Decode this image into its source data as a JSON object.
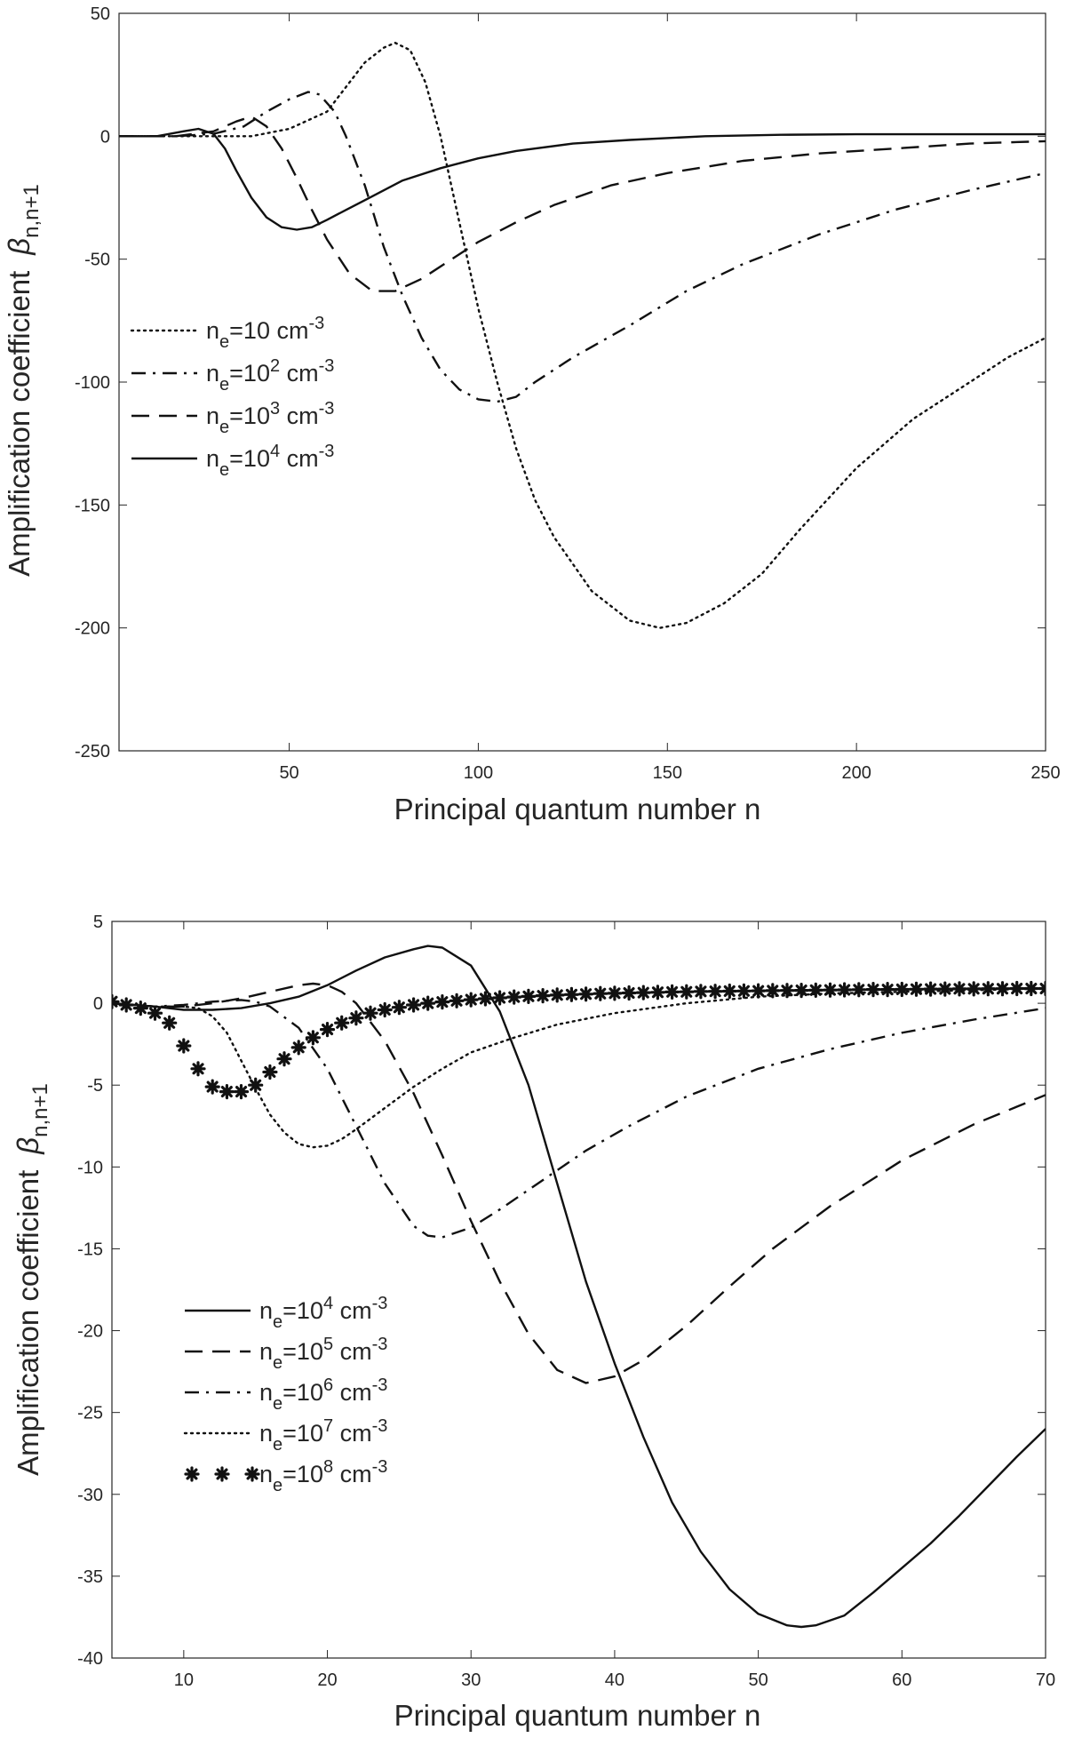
{
  "charts": [
    {
      "xlabel": "Principal quantum number n",
      "ylabel_main": "Amplification coefficient",
      "ylabel_symbol": "β",
      "ylabel_sub": "n,n+1",
      "legend_base": "n",
      "legend_sub": "e",
      "legend_unit": " cm",
      "legend_unit_sup": "-3",
      "xticks": [
        "50",
        "100",
        "150",
        "200",
        "250"
      ],
      "yticks": [
        "50",
        "0",
        "-50",
        "-100",
        "-150",
        "-200",
        "-250"
      ],
      "legend": [
        {
          "style": "dotted",
          "value": "=10",
          "sup": ""
        },
        {
          "style": "dashdot",
          "value": "=10",
          "sup": "2"
        },
        {
          "style": "dashed",
          "value": "=10",
          "sup": "3"
        },
        {
          "style": "solid",
          "value": "=10",
          "sup": "4"
        }
      ]
    },
    {
      "xlabel": "Principal quantum number n",
      "ylabel_main": "Amplification coefficient",
      "ylabel_symbol": "β",
      "ylabel_sub": "n,n+1",
      "legend_base": "n",
      "legend_sub": "e",
      "legend_unit": " cm",
      "legend_unit_sup": "-3",
      "xticks": [
        "10",
        "20",
        "30",
        "40",
        "50",
        "60",
        "70"
      ],
      "yticks": [
        "5",
        "0",
        "-5",
        "-10",
        "-15",
        "-20",
        "-25",
        "-30",
        "-35",
        "-40"
      ],
      "legend": [
        {
          "style": "solid",
          "value": "=10",
          "sup": "4"
        },
        {
          "style": "dashed",
          "value": "=10",
          "sup": "5"
        },
        {
          "style": "dashdot",
          "value": "=10",
          "sup": "6"
        },
        {
          "style": "dotted",
          "value": "=10",
          "sup": "7"
        },
        {
          "style": "stars",
          "value": "=10",
          "sup": "8"
        }
      ]
    }
  ],
  "chart_data": [
    {
      "type": "line",
      "title": "",
      "xlabel": "Principal quantum number n",
      "ylabel": "Amplification coefficient β_{n,n+1}",
      "xlim": [
        5,
        250
      ],
      "ylim": [
        -250,
        50
      ],
      "xticks": [
        50,
        100,
        150,
        200,
        250
      ],
      "yticks": [
        50,
        0,
        -50,
        -100,
        -150,
        -200,
        -250
      ],
      "grid": false,
      "legend_position": "middle-left",
      "series": [
        {
          "name": "n_e=10 cm^-3",
          "style": "dotted",
          "x": [
            5,
            20,
            40,
            50,
            60,
            65,
            70,
            75,
            78,
            82,
            86,
            90,
            95,
            100,
            105,
            110,
            115,
            120,
            130,
            140,
            148,
            155,
            165,
            175,
            185,
            200,
            215,
            230,
            240,
            250
          ],
          "y": [
            0,
            0,
            0,
            3,
            10,
            20,
            30,
            36,
            38,
            35,
            22,
            0,
            -35,
            -70,
            -100,
            -127,
            -148,
            -163,
            -185,
            -197,
            -200,
            -198,
            -190,
            -178,
            -160,
            -135,
            -115,
            -100,
            -90,
            -82
          ]
        },
        {
          "name": "n_e=10^2 cm^-3",
          "style": "dashdot",
          "x": [
            5,
            20,
            30,
            38,
            44,
            50,
            55,
            58,
            62,
            65,
            70,
            75,
            80,
            85,
            90,
            95,
            100,
            105,
            110,
            115,
            125,
            140,
            155,
            170,
            190,
            210,
            230,
            250
          ],
          "y": [
            0,
            0,
            1,
            4,
            10,
            15,
            18,
            17,
            10,
            0,
            -20,
            -45,
            -65,
            -82,
            -95,
            -103,
            -107,
            -108,
            -106,
            -100,
            -90,
            -77,
            -63,
            -52,
            -40,
            -30,
            -22,
            -15
          ]
        },
        {
          "name": "n_e=10^3 cm^-3",
          "style": "dashed",
          "x": [
            5,
            20,
            30,
            36,
            40,
            44,
            48,
            52,
            56,
            60,
            66,
            72,
            78,
            85,
            92,
            100,
            110,
            120,
            135,
            150,
            170,
            190,
            210,
            230,
            250
          ],
          "y": [
            0,
            0,
            2,
            6,
            8,
            4,
            -5,
            -17,
            -30,
            -42,
            -56,
            -63,
            -63,
            -58,
            -51,
            -43,
            -35,
            -28,
            -20,
            -15,
            -10,
            -7,
            -5,
            -3,
            -2
          ]
        },
        {
          "name": "n_e=10^4 cm^-3",
          "style": "solid",
          "x": [
            5,
            15,
            22,
            26,
            30,
            33,
            36,
            40,
            44,
            48,
            52,
            56,
            60,
            65,
            70,
            75,
            80,
            90,
            100,
            110,
            125,
            140,
            160,
            180,
            200,
            225,
            250
          ],
          "y": [
            0,
            0,
            2,
            3,
            1,
            -5,
            -14,
            -25,
            -33,
            -37,
            -38,
            -37,
            -34,
            -30,
            -26,
            -22,
            -18,
            -13,
            -9,
            -6,
            -3,
            -1.5,
            0,
            0.6,
            0.8,
            0.8,
            0.8
          ]
        }
      ]
    },
    {
      "type": "line",
      "title": "",
      "xlabel": "Principal quantum number n",
      "ylabel": "Amplification coefficient β_{n,n+1}",
      "xlim": [
        5,
        70
      ],
      "ylim": [
        -40,
        5
      ],
      "xticks": [
        10,
        20,
        30,
        40,
        50,
        60,
        70
      ],
      "yticks": [
        5,
        0,
        -5,
        -10,
        -15,
        -20,
        -25,
        -30,
        -35,
        -40
      ],
      "grid": false,
      "legend_position": "bottom-left",
      "series": [
        {
          "name": "n_e=10^4 cm^-3",
          "style": "solid",
          "x": [
            5,
            8,
            10,
            12,
            14,
            16,
            18,
            20,
            22,
            24,
            26,
            27,
            28,
            30,
            32,
            34,
            36,
            38,
            40,
            42,
            44,
            46,
            48,
            50,
            52,
            53,
            54,
            56,
            58,
            60,
            62,
            64,
            66,
            68,
            70
          ],
          "y": [
            0,
            -0.2,
            -0.4,
            -0.4,
            -0.3,
            0,
            0.4,
            1.1,
            2.0,
            2.8,
            3.3,
            3.5,
            3.4,
            2.3,
            -0.5,
            -5,
            -11,
            -17,
            -22,
            -26.5,
            -30.5,
            -33.5,
            -35.8,
            -37.3,
            -38,
            -38.1,
            -38,
            -37.4,
            -36,
            -34.5,
            -33,
            -31.3,
            -29.5,
            -27.7,
            -26
          ]
        },
        {
          "name": "n_e=10^5 cm^-3",
          "style": "dashed",
          "x": [
            5,
            8,
            10,
            12,
            14,
            16,
            18,
            19,
            20,
            21,
            22,
            24,
            26,
            28,
            30,
            32,
            34,
            36,
            38,
            40,
            42,
            45,
            48,
            51,
            55,
            60,
            65,
            70
          ],
          "y": [
            0,
            -0.2,
            -0.2,
            0,
            0.3,
            0.7,
            1.1,
            1.2,
            1.1,
            0.7,
            0,
            -2.3,
            -5.5,
            -9.3,
            -13.3,
            -17,
            -20.2,
            -22.4,
            -23.2,
            -22.8,
            -21.8,
            -19.7,
            -17.3,
            -15,
            -12.4,
            -9.6,
            -7.4,
            -5.6
          ]
        },
        {
          "name": "n_e=10^6 cm^-3",
          "style": "dashdot",
          "x": [
            5,
            8,
            10,
            12,
            14,
            15,
            16,
            18,
            20,
            22,
            24,
            26,
            27,
            28,
            30,
            32,
            35,
            38,
            41,
            45,
            50,
            55,
            60,
            65,
            70
          ],
          "y": [
            0,
            -0.2,
            -0.1,
            0.1,
            0.2,
            0.1,
            -0.2,
            -1.5,
            -4,
            -7.5,
            -11,
            -13.6,
            -14.2,
            -14.3,
            -13.7,
            -12.6,
            -10.8,
            -9,
            -7.5,
            -5.7,
            -4,
            -2.8,
            -1.8,
            -1,
            -0.3
          ]
        },
        {
          "name": "n_e=10^7 cm^-3",
          "style": "dotted",
          "x": [
            5,
            8,
            10,
            11,
            12,
            13,
            14,
            15,
            16,
            17,
            18,
            19,
            20,
            21,
            22,
            24,
            26,
            28,
            30,
            33,
            36,
            40,
            45,
            50,
            55,
            60,
            65,
            70
          ],
          "y": [
            0,
            -0.2,
            -0.2,
            -0.3,
            -0.8,
            -1.8,
            -3.5,
            -5.2,
            -6.8,
            -7.9,
            -8.6,
            -8.8,
            -8.7,
            -8.3,
            -7.7,
            -6.4,
            -5.1,
            -4,
            -3,
            -2.1,
            -1.3,
            -0.6,
            0,
            0.4,
            0.6,
            0.7,
            0.8,
            0.9
          ]
        },
        {
          "name": "n_e=10^8 cm^-3",
          "style": "stars",
          "x": [
            5,
            6,
            7,
            8,
            9,
            10,
            11,
            12,
            13,
            14,
            15,
            16,
            17,
            18,
            19,
            20,
            21,
            22,
            23,
            24,
            25,
            26,
            27,
            28,
            29,
            30,
            31,
            32,
            33,
            34,
            35,
            36,
            37,
            38,
            39,
            40,
            41,
            42,
            43,
            44,
            45,
            46,
            47,
            48,
            49,
            50,
            51,
            52,
            53,
            54,
            55,
            56,
            57,
            58,
            59,
            60,
            61,
            62,
            63,
            64,
            65,
            66,
            67,
            68,
            69,
            70
          ],
          "y": [
            0.1,
            -0.1,
            -0.3,
            -0.6,
            -1.2,
            -2.6,
            -4.0,
            -5.1,
            -5.4,
            -5.4,
            -5.0,
            -4.2,
            -3.4,
            -2.7,
            -2.1,
            -1.6,
            -1.2,
            -0.9,
            -0.6,
            -0.4,
            -0.25,
            -0.1,
            0,
            0.08,
            0.15,
            0.22,
            0.28,
            0.33,
            0.38,
            0.42,
            0.46,
            0.5,
            0.53,
            0.56,
            0.59,
            0.61,
            0.63,
            0.65,
            0.67,
            0.69,
            0.7,
            0.72,
            0.73,
            0.74,
            0.75,
            0.76,
            0.77,
            0.78,
            0.79,
            0.8,
            0.81,
            0.82,
            0.83,
            0.84,
            0.84,
            0.85,
            0.86,
            0.87,
            0.87,
            0.88,
            0.88,
            0.89,
            0.89,
            0.9,
            0.9,
            0.9
          ]
        }
      ]
    }
  ]
}
